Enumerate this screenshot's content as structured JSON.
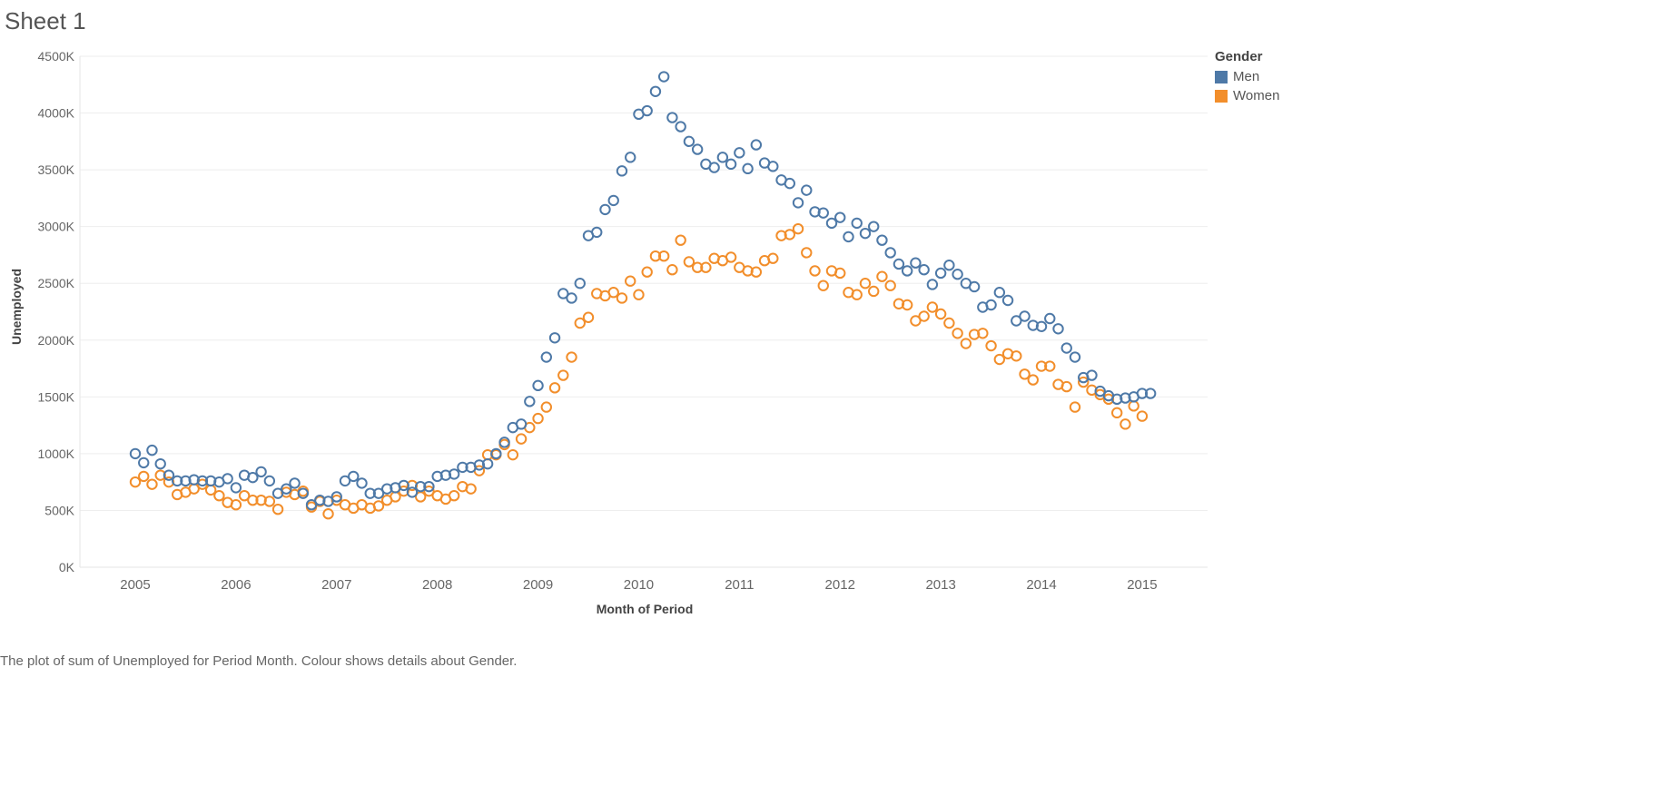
{
  "sheet": {
    "title": "Sheet 1"
  },
  "caption": "The plot of sum of Unemployed for Period Month.  Colour shows details about Gender.",
  "legend": {
    "title": "Gender",
    "items": [
      {
        "label": "Men",
        "color": "#4e79a7"
      },
      {
        "label": "Women",
        "color": "#f28e2b"
      }
    ]
  },
  "chart_data": {
    "type": "scatter",
    "xlabel": "Month of Period",
    "ylabel": "Unemployed",
    "xlim": [
      2004.45,
      2015.65
    ],
    "ylim": [
      0,
      4500
    ],
    "x_ticks": [
      "2005",
      "2006",
      "2007",
      "2008",
      "2009",
      "2010",
      "2011",
      "2012",
      "2013",
      "2014",
      "2015"
    ],
    "y_ticks": [
      "0K",
      "500K",
      "1000K",
      "1500K",
      "2000K",
      "2500K",
      "3000K",
      "3500K",
      "4000K",
      "4500K"
    ],
    "x_start": "2005-01",
    "grid": "horizontal",
    "legend_position": "right",
    "series": [
      {
        "name": "Men",
        "color": "#4e79a7",
        "values": [
          1000,
          920,
          1030,
          910,
          810,
          760,
          760,
          770,
          760,
          760,
          750,
          780,
          700,
          810,
          790,
          840,
          760,
          650,
          690,
          740,
          650,
          550,
          590,
          580,
          620,
          760,
          800,
          740,
          650,
          650,
          690,
          700,
          720,
          660,
          710,
          710,
          800,
          810,
          820,
          880,
          880,
          900,
          910,
          1000,
          1100,
          1230,
          1260,
          1460,
          1600,
          1850,
          2020,
          2410,
          2370,
          2500,
          2920,
          2950,
          3150,
          3230,
          3490,
          3610,
          3990,
          4020,
          4190,
          4320,
          3960,
          3880,
          3750,
          3680,
          3550,
          3520,
          3610,
          3550,
          3650,
          3510,
          3720,
          3560,
          3530,
          3410,
          3380,
          3210,
          3320,
          3130,
          3120,
          3030,
          3080,
          2910,
          3030,
          2940,
          3000,
          2880,
          2770,
          2670,
          2610,
          2680,
          2620,
          2490,
          2590,
          2660,
          2580,
          2500,
          2470,
          2290,
          2310,
          2420,
          2350,
          2170,
          2210,
          2130,
          2120,
          2190,
          2100,
          1930,
          1850,
          1670,
          1690,
          1550,
          1510,
          1480,
          1490,
          1500,
          1530,
          1530
        ]
      },
      {
        "name": "Women",
        "color": "#f28e2b",
        "values": [
          750,
          800,
          730,
          810,
          750,
          640,
          660,
          690,
          730,
          680,
          630,
          570,
          550,
          630,
          590,
          590,
          580,
          510,
          660,
          640,
          670,
          530,
          580,
          470,
          590,
          550,
          520,
          550,
          520,
          540,
          590,
          620,
          670,
          720,
          620,
          670,
          630,
          600,
          630,
          710,
          690,
          850,
          990,
          990,
          1080,
          990,
          1130,
          1230,
          1310,
          1410,
          1580,
          1690,
          1850,
          2150,
          2200,
          2410,
          2390,
          2420,
          2370,
          2520,
          2400,
          2600,
          2740,
          2740,
          2620,
          2880,
          2690,
          2640,
          2640,
          2720,
          2700,
          2730,
          2640,
          2610,
          2600,
          2700,
          2720,
          2920,
          2930,
          2980,
          2770,
          2610,
          2480,
          2610,
          2590,
          2420,
          2400,
          2500,
          2430,
          2560,
          2480,
          2320,
          2310,
          2170,
          2210,
          2290,
          2230,
          2150,
          2060,
          1970,
          2050,
          2060,
          1950,
          1830,
          1880,
          1860,
          1700,
          1650,
          1770,
          1770,
          1610,
          1590,
          1410,
          1630,
          1560,
          1520,
          1480,
          1360,
          1260,
          1420,
          1330
        ]
      }
    ]
  }
}
